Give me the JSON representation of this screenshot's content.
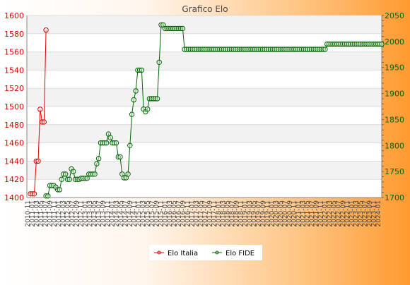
{
  "chart_data": {
    "type": "line",
    "title": "Grafico Elo",
    "colors": {
      "elo_italia": "#dd0000",
      "elo_fide": "#006600"
    },
    "legend_position": "bottom-center",
    "grid": true,
    "left_axis": {
      "ylim": [
        1400,
        1600
      ],
      "ticks": [
        "1400",
        "1420",
        "1440",
        "1460",
        "1480",
        "1500",
        "1520",
        "1540",
        "1560",
        "1580",
        "1600"
      ]
    },
    "right_axis": {
      "ylim": [
        1700,
        2050
      ],
      "ticks": [
        "1700",
        "1750",
        "1800",
        "1850",
        "1900",
        "1950",
        "2000",
        "2050"
      ]
    },
    "x_tick_labels": [
      "2010-11",
      "2011-01",
      "2011-03",
      "2011-05",
      "2011-07",
      "2011-09",
      "2011-11",
      "2012-01",
      "2012-03",
      "2012-05",
      "2012-07",
      "2012-09",
      "2012-11",
      "2013-01",
      "2013-03",
      "2013-05",
      "2013-07",
      "2013-09",
      "2013-11",
      "2014-01",
      "2014-03",
      "2014-05",
      "2014-07",
      "2014-09",
      "2014-11",
      "2015-01",
      "2015-03",
      "2015-05",
      "2015-07",
      "2015-09",
      "2015-11",
      "2016-01",
      "2016-03",
      "2016-05",
      "2016-07",
      "2016-09",
      "2016-11",
      "2017-01",
      "2017-03",
      "2017-05",
      "2017-07",
      "2017-09",
      "2017-11",
      "2018-01",
      "2018-03",
      "2018-05",
      "2018-07",
      "2018-09",
      "2018-11",
      "2019-01",
      "2019-03",
      "2019-05",
      "2019-07",
      "2019-09",
      "2019-11",
      "2020-01",
      "2020-03",
      "2020-05",
      "2020-07",
      "2020-09",
      "2020-11",
      "2021-01",
      "2021-03",
      "2021-05",
      "2021-07",
      "2021-09",
      "2021-11",
      "2022-01",
      "2022-03",
      "2022-05",
      "2022-07",
      "2022-09",
      "2022-11",
      "2023-01",
      "2023-03",
      "2023-05",
      "2023-07",
      "2023-09",
      "2023-11",
      "2024-01"
    ],
    "series": [
      {
        "name": "Elo Italia",
        "axis": "left",
        "values": [
          1404,
          1404,
          1404,
          1440,
          1440,
          1497,
          1483,
          1483,
          1584
        ]
      },
      {
        "name": "Elo FIDE",
        "axis": "right",
        "start_index": 8,
        "values": [
          1703,
          1703,
          1723,
          1723,
          1723,
          1720,
          1715,
          1715,
          1735,
          1745,
          1745,
          1735,
          1735,
          1755,
          1750,
          1735,
          1735,
          1735,
          1737,
          1737,
          1737,
          1737,
          1745,
          1745,
          1745,
          1745,
          1765,
          1775,
          1805,
          1805,
          1805,
          1805,
          1822,
          1815,
          1805,
          1805,
          1805,
          1778,
          1778,
          1745,
          1738,
          1738,
          1745,
          1800,
          1860,
          1888,
          1905,
          1945,
          1945,
          1945,
          1870,
          1865,
          1870,
          1890,
          1890,
          1890,
          1890,
          1890,
          1960,
          2032,
          2032,
          2025,
          2025,
          2025,
          2025,
          2025,
          2025,
          2025,
          2025,
          2025,
          2025,
          1985,
          1985,
          1985,
          1985,
          1985,
          1985,
          1985,
          1985,
          1985,
          1985,
          1985,
          1985,
          1985,
          1985,
          1985,
          1985,
          1985,
          1985,
          1985,
          1985,
          1985,
          1985,
          1985,
          1985,
          1985,
          1985,
          1985,
          1985,
          1985,
          1985,
          1985,
          1985,
          1985,
          1985,
          1985,
          1985,
          1985,
          1985,
          1985,
          1985,
          1985,
          1985,
          1985,
          1985,
          1985,
          1985,
          1985,
          1985,
          1985,
          1985,
          1985,
          1985,
          1985,
          1985,
          1985,
          1985,
          1985,
          1985,
          1985,
          1985,
          1985,
          1985,
          1985,
          1985,
          1985,
          1985,
          1985,
          1985,
          1985,
          1985,
          1985,
          1985,
          1985,
          1995,
          1995,
          1995,
          1995,
          1995,
          1995,
          1995,
          1995,
          1995,
          1995,
          1995,
          1995,
          1995,
          1995,
          1995,
          1995,
          1995,
          1995,
          1995,
          1995,
          1995,
          1995,
          1995,
          1995,
          1995,
          1995,
          1995,
          1995,
          1995
        ]
      }
    ]
  }
}
